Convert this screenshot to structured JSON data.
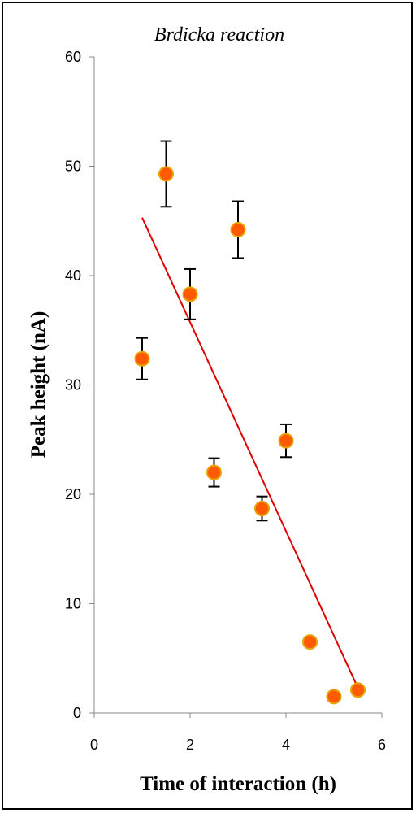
{
  "chart_data": {
    "type": "scatter",
    "title": "Brdicka reaction",
    "xlabel": "Time of interaction (h)",
    "ylabel": "Peak height (nA)",
    "xlim": [
      0,
      6
    ],
    "ylim": [
      0,
      60
    ],
    "x_ticks": [
      "0",
      "2",
      "4",
      "6"
    ],
    "y_ticks": [
      "0",
      "10",
      "20",
      "30",
      "40",
      "50",
      "60"
    ],
    "grid": false,
    "legend": "none",
    "marker_color": "#ff5a00",
    "marker_edge_color": "#e8a100",
    "trend_color": "#e00000",
    "points": [
      {
        "x": 1.0,
        "y": 32.4,
        "err": 1.9
      },
      {
        "x": 1.5,
        "y": 49.3,
        "err": 3.0
      },
      {
        "x": 2.0,
        "y": 38.3,
        "err": 2.3
      },
      {
        "x": 2.5,
        "y": 22.0,
        "err": 1.3
      },
      {
        "x": 3.0,
        "y": 44.2,
        "err": 2.6
      },
      {
        "x": 3.5,
        "y": 18.7,
        "err": 1.1
      },
      {
        "x": 4.0,
        "y": 24.9,
        "err": 1.5
      },
      {
        "x": 4.5,
        "y": 6.5,
        "err": 0.4
      },
      {
        "x": 5.0,
        "y": 1.5,
        "err": 0.1
      },
      {
        "x": 5.5,
        "y": 2.1,
        "err": 0.1
      }
    ],
    "trendline": {
      "x": [
        1.0,
        5.5
      ],
      "y": [
        45.3,
        2.3
      ]
    }
  }
}
